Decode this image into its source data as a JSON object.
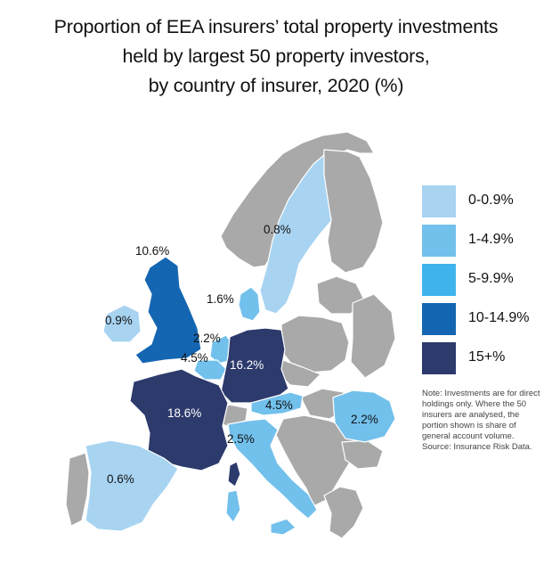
{
  "title": {
    "line1": "Proportion of EEA insurers’ total property investments",
    "line2": "held by largest 50 property investors,",
    "line3": "by country of insurer, 2020 (%)"
  },
  "legend": [
    {
      "label": "0-0.9%",
      "color": "#a8d4f2"
    },
    {
      "label": "1-4.9%",
      "color": "#72c0ec"
    },
    {
      "label": "5-9.9%",
      "color": "#3fb4ec"
    },
    {
      "label": "10-14.9%",
      "color": "#1566b2"
    },
    {
      "label": "15+%",
      "color": "#2d3a6c"
    }
  ],
  "colors": {
    "other_country": "#a9a9a9",
    "country_border": "#ffffff"
  },
  "note": {
    "line1": "Note: Investments are for direct",
    "line2": "holdings only. Where the 50",
    "line3": "insurers are analysed, the",
    "line4": "portion shown is share of",
    "line5": "general account volume.",
    "line6": "Source: Insurance Risk Data."
  },
  "countries": {
    "sweden": {
      "value": "0.8%",
      "band": "0-0.9%"
    },
    "uk": {
      "value": "10.6%",
      "band": "10-14.9%"
    },
    "ireland": {
      "value": "0.9%",
      "band": "0-0.9%"
    },
    "denmark": {
      "value": "1.6%",
      "band": "1-4.9%"
    },
    "netherlands": {
      "value": "2.2%",
      "band": "1-4.9%"
    },
    "belgium": {
      "value": "4.5%",
      "band": "1-4.9%"
    },
    "germany": {
      "value": "16.2%",
      "band": "15+%"
    },
    "france": {
      "value": "18.6%",
      "band": "15+%"
    },
    "austria": {
      "value": "4.5%",
      "band": "1-4.9%"
    },
    "italy": {
      "value": "2.5%",
      "band": "1-4.9%"
    },
    "romania": {
      "value": "2.2%",
      "band": "1-4.9%"
    },
    "spain": {
      "value": "0.6%",
      "band": "0-0.9%"
    }
  }
}
